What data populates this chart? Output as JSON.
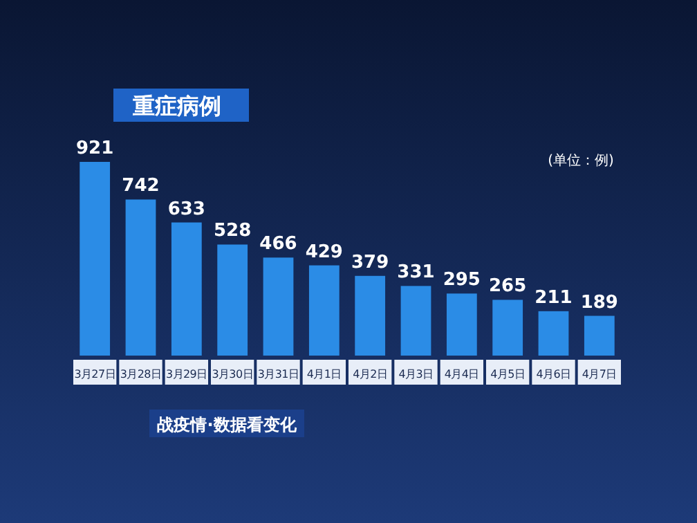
{
  "chart_data": {
    "type": "bar",
    "title": "重症病例",
    "subtitle": "战疫情·数据看变化",
    "annotations": [
      "(单位：例)"
    ],
    "categories": [
      "3月27日",
      "3月28日",
      "3月29日",
      "3月30日",
      "3月31日",
      "4月1日",
      "4月2日",
      "4月3日",
      "4月4日",
      "4月5日",
      "4月6日",
      "4月7日"
    ],
    "values": [
      921,
      742,
      633,
      528,
      466,
      429,
      379,
      331,
      295,
      265,
      211,
      189
    ],
    "color": "#2b8ce6",
    "data_labels": true
  }
}
